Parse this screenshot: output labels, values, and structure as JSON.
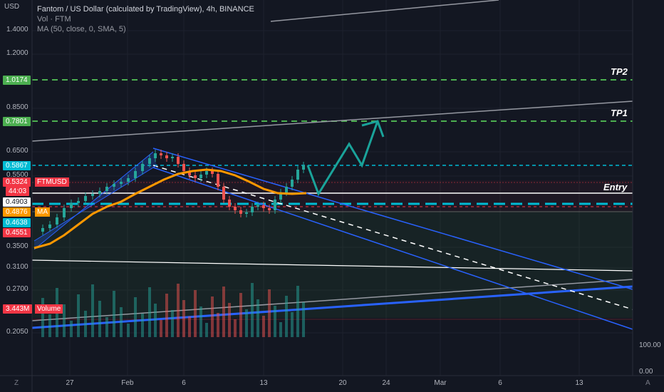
{
  "header": {
    "usd_label": "USD",
    "title": "Fantom / US Dollar (calculated by TradingView), 4h, BINANCE",
    "vol_label": "Vol · FTM",
    "ma_label": "MA (50, close, 0, SMA, 5)"
  },
  "chart_data": {
    "type": "candlestick",
    "symbol": "FTMUSD",
    "y_scale": "log",
    "ylim": [
      0.19,
      1.85
    ],
    "y_ticks": [
      "1.4000",
      "1.2000",
      "0.8500",
      "0.6500",
      "0.5500",
      "0.3500",
      "0.3100",
      "0.2700",
      "0.2050"
    ],
    "x_ticks": [
      "27",
      "Feb",
      "6",
      "13",
      "20",
      "24",
      "Mar",
      "6",
      "13"
    ],
    "price_labels": [
      {
        "text": "1.0174",
        "color": "#4caf50"
      },
      {
        "text": "0.7801",
        "color": "#4caf50"
      },
      {
        "text": "0.5867",
        "color": "#00bcd4"
      },
      {
        "text": "0.5324",
        "color": "#f23645"
      },
      {
        "text": "44:03",
        "color": "#f23645"
      },
      {
        "text": "0.4903",
        "color": "#ffffff"
      },
      {
        "text": "0.4876",
        "color": "#ff9800"
      },
      {
        "text": "0.4638",
        "color": "#00bcd4"
      },
      {
        "text": "0.4551",
        "color": "#f23645"
      },
      {
        "text": "3.443M",
        "color": "#f23645"
      }
    ],
    "tags": {
      "symbol": "FTMUSD",
      "ma": "MA",
      "volume": "Volume"
    },
    "annotations": {
      "tp2": "TP2",
      "tp1": "TP1",
      "entry": "Entry"
    },
    "volume_axis": [
      "100.00",
      "0.00"
    ],
    "colors": {
      "up": "#26a69a",
      "down": "#ef5350",
      "ma": "#ff9800",
      "channel": "#2962ff",
      "target": "#4caf50",
      "projection": "#1aa39a"
    }
  },
  "footer": {
    "left": "Z",
    "right": "A"
  }
}
